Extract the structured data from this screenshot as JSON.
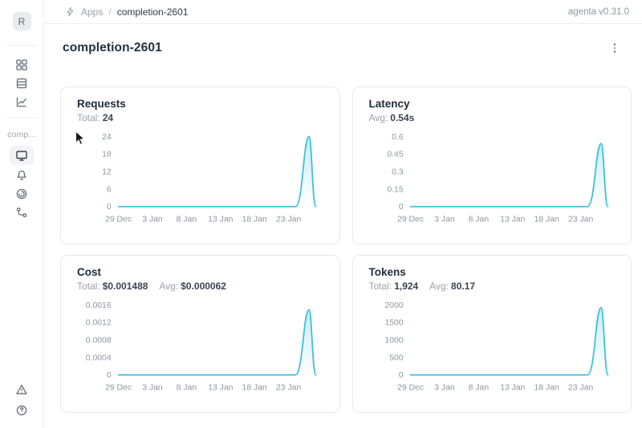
{
  "header": {
    "breadcrumb": {
      "section": "Apps",
      "separator": "/",
      "current": "completion-2601"
    },
    "version": "agenta v0.31.0"
  },
  "sidebar": {
    "avatar_letter": "R",
    "workspace_label": "comp...",
    "nav_icons": [
      "apps-grid-icon",
      "test-sets-icon",
      "line-chart-icon"
    ],
    "app_icons": [
      "monitor-icon",
      "bell-icon",
      "radar-icon",
      "tree-branch-icon"
    ],
    "bottom_icons": [
      "alert-triangle-icon",
      "help-icon"
    ],
    "selected_item": "monitor-icon"
  },
  "main": {
    "title": "completion-2601",
    "cards": [
      {
        "title": "Requests",
        "stats": [
          {
            "label": "Total:",
            "value": "24"
          }
        ]
      },
      {
        "title": "Latency",
        "stats": [
          {
            "label": "Avg:",
            "value": "0.54s"
          }
        ]
      },
      {
        "title": "Cost",
        "stats": [
          {
            "label": "Total:",
            "value": "$0.001488"
          },
          {
            "label": "Avg:",
            "value": "$0.000062"
          }
        ]
      },
      {
        "title": "Tokens",
        "stats": [
          {
            "label": "Total:",
            "value": "1,924"
          },
          {
            "label": "Avg:",
            "value": "80.17"
          }
        ]
      }
    ]
  },
  "colors": {
    "line": "#3dbfdb",
    "area_top": "rgba(61,191,219,0.28)",
    "area_bottom": "rgba(61,191,219,0)",
    "tick_text": "#8d96a1"
  },
  "chart_data": [
    {
      "type": "line",
      "title": "Requests",
      "ylabel": "",
      "xlabel": "",
      "ylim": [
        0,
        24
      ],
      "y_ticks": [
        "0",
        "6",
        "12",
        "18",
        "24"
      ],
      "days_span": 29,
      "x_tick_days": [
        0,
        5,
        10,
        15,
        20,
        25
      ],
      "x_ticks": [
        "29 Dec",
        "3 Jan",
        "8 Jan",
        "13 Jan",
        "18 Jan",
        "23 Jan"
      ],
      "points": [
        {
          "day": 0,
          "value": 0
        },
        {
          "day": 26,
          "value": 0
        },
        {
          "day": 28,
          "value": 24
        },
        {
          "day": 29,
          "value": 0
        }
      ]
    },
    {
      "type": "line",
      "title": "Latency",
      "ylabel": "",
      "xlabel": "",
      "ylim": [
        0,
        0.6
      ],
      "y_ticks": [
        "0",
        "0.15",
        "0.3",
        "0.45",
        "0.6"
      ],
      "days_span": 29,
      "x_tick_days": [
        0,
        5,
        10,
        15,
        20,
        25
      ],
      "x_ticks": [
        "29 Dec",
        "3 Jan",
        "8 Jan",
        "13 Jan",
        "18 Jan",
        "23 Jan"
      ],
      "points": [
        {
          "day": 0,
          "value": 0
        },
        {
          "day": 26,
          "value": 0
        },
        {
          "day": 28,
          "value": 0.54
        },
        {
          "day": 29,
          "value": 0
        }
      ]
    },
    {
      "type": "line",
      "title": "Cost",
      "ylabel": "",
      "xlabel": "",
      "ylim": [
        0,
        0.0016
      ],
      "y_ticks": [
        "0",
        "0.0004",
        "0.0008",
        "0.0012",
        "0.0016"
      ],
      "days_span": 29,
      "x_tick_days": [
        0,
        5,
        10,
        15,
        20,
        25
      ],
      "x_ticks": [
        "29 Dec",
        "3 Jan",
        "8 Jan",
        "13 Jan",
        "18 Jan",
        "23 Jan"
      ],
      "points": [
        {
          "day": 0,
          "value": 0
        },
        {
          "day": 26,
          "value": 0
        },
        {
          "day": 28,
          "value": 0.001488
        },
        {
          "day": 29,
          "value": 0
        }
      ]
    },
    {
      "type": "line",
      "title": "Tokens",
      "ylabel": "",
      "xlabel": "",
      "ylim": [
        0,
        2000
      ],
      "y_ticks": [
        "0",
        "500",
        "1000",
        "1500",
        "2000"
      ],
      "days_span": 29,
      "x_tick_days": [
        0,
        5,
        10,
        15,
        20,
        25
      ],
      "x_ticks": [
        "29 Dec",
        "3 Jan",
        "8 Jan",
        "13 Jan",
        "18 Jan",
        "23 Jan"
      ],
      "points": [
        {
          "day": 0,
          "value": 0
        },
        {
          "day": 26,
          "value": 0
        },
        {
          "day": 28,
          "value": 1924
        },
        {
          "day": 29,
          "value": 0
        }
      ]
    }
  ]
}
